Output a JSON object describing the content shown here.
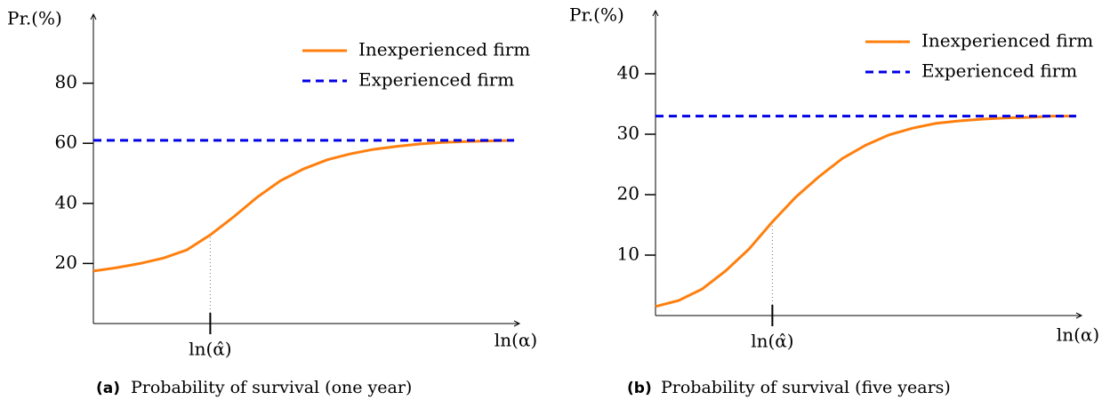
{
  "chart_data": [
    {
      "type": "line",
      "caption_tag": "(a)",
      "caption": "Probability of survival (one year)",
      "y_label": "Pr.(%)",
      "x_label": "ln(α)",
      "categories": [
        null,
        null,
        null,
        null,
        null,
        "ln(α̂)",
        null,
        null,
        null,
        null,
        null,
        null,
        null,
        null,
        null,
        null,
        null,
        null,
        null
      ],
      "ylim": [
        0,
        100
      ],
      "yticks": [
        20,
        40,
        60,
        80
      ],
      "legend": "upper right",
      "series": [
        {
          "name": "Inexperienced firm",
          "color": "#ff7f0e",
          "style": "solid",
          "values": [
            17.5,
            18.6,
            20,
            21.8,
            24.5,
            29.5,
            35.5,
            42,
            47.5,
            51.5,
            54.5,
            56.5,
            58,
            59,
            59.8,
            60.3,
            60.6,
            60.8,
            61
          ]
        },
        {
          "name": "Experienced firm",
          "color": "#0000e6",
          "style": "dashed",
          "values": [
            61,
            61,
            61,
            61,
            61,
            61,
            61,
            61,
            61,
            61,
            61,
            61,
            61,
            61,
            61,
            61,
            61,
            61,
            61
          ]
        }
      ]
    },
    {
      "type": "line",
      "caption_tag": "(b)",
      "caption": "Probability of survival (five years)",
      "y_label": "Pr.(%)",
      "x_label": "ln(α)",
      "categories": [
        null,
        null,
        null,
        null,
        null,
        "ln(α̂)",
        null,
        null,
        null,
        null,
        null,
        null,
        null,
        null,
        null,
        null,
        null,
        null,
        null
      ],
      "ylim": [
        0,
        50
      ],
      "yticks": [
        10,
        20,
        30,
        40
      ],
      "legend": "upper right",
      "series": [
        {
          "name": "Inexperienced firm",
          "color": "#ff7f0e",
          "style": "solid",
          "values": [
            1.5,
            2.5,
            4.4,
            7.4,
            11,
            15.5,
            19.6,
            23,
            26,
            28.2,
            29.9,
            31,
            31.8,
            32.2,
            32.5,
            32.7,
            32.8,
            33,
            33
          ]
        },
        {
          "name": "Experienced firm",
          "color": "#0000e6",
          "style": "dashed",
          "values": [
            33,
            33,
            33,
            33,
            33,
            33,
            33,
            33,
            33,
            33,
            33,
            33,
            33,
            33,
            33,
            33,
            33,
            33,
            33
          ]
        }
      ]
    }
  ]
}
